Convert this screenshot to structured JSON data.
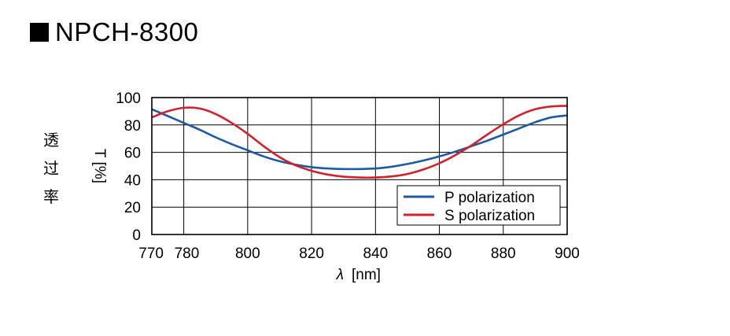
{
  "title": "NPCH-8300",
  "ylabel_jp": [
    "透",
    "过",
    "率"
  ],
  "chart_data": {
    "type": "line",
    "title": "NPCH-8300",
    "xlabel_symbol": "λ",
    "xlabel_unit": "[nm]",
    "ylabel": "T [%]",
    "xlim": [
      770,
      900
    ],
    "ylim": [
      0,
      100
    ],
    "xticks": [
      770,
      780,
      800,
      820,
      840,
      860,
      880,
      900
    ],
    "yticks": [
      0,
      20,
      40,
      60,
      80,
      100
    ],
    "grid": true,
    "legend_position": "bottom-right",
    "series": [
      {
        "name": "P polarization",
        "color": "#1a5aa6",
        "x": [
          770,
          775,
          780,
          785,
          790,
          795,
          800,
          805,
          810,
          815,
          820,
          825,
          830,
          835,
          840,
          845,
          850,
          855,
          860,
          865,
          870,
          875,
          880,
          885,
          890,
          895,
          900
        ],
        "y": [
          91.5,
          86.5,
          81.5,
          76.5,
          71,
          66,
          61.5,
          57,
          53.5,
          51,
          49.2,
          48.2,
          47.8,
          47.8,
          48.2,
          49.5,
          51.5,
          54,
          57,
          60.5,
          64.5,
          68.5,
          73,
          77.5,
          82,
          85.5,
          87
        ]
      },
      {
        "name": "S polarization",
        "color": "#d4202a",
        "x": [
          770,
          775,
          780,
          785,
          790,
          795,
          800,
          805,
          810,
          815,
          820,
          825,
          830,
          835,
          840,
          845,
          850,
          855,
          860,
          865,
          870,
          875,
          880,
          885,
          890,
          895,
          900
        ],
        "y": [
          85.5,
          90,
          92.5,
          92,
          88,
          81.5,
          73.5,
          64.5,
          56.5,
          50.5,
          46.5,
          43.8,
          42.2,
          41.6,
          41.6,
          42.4,
          44.2,
          47.5,
          52,
          58,
          65,
          73,
          80.5,
          87,
          91.5,
          93.5,
          94
        ]
      }
    ]
  }
}
